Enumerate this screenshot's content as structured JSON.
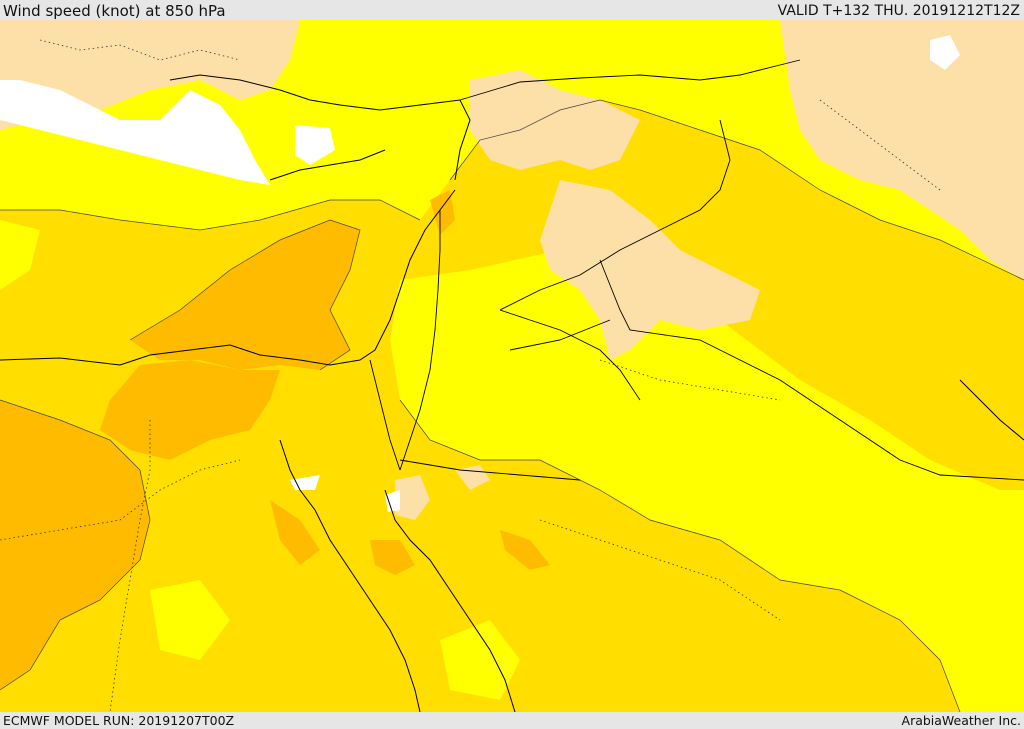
{
  "header": {
    "title": "Wind speed (knot) at 850 hPa",
    "valid": "VALID T+132 THU. 20191212T12Z"
  },
  "footer": {
    "model_run": "ECMWF MODEL RUN: 20191207T00Z",
    "credit": "ArabiaWeather Inc."
  },
  "map": {
    "colors": {
      "sea_white": "#ffffff",
      "calm_tan": "#fde0a8",
      "light_yellow": "#ffff00",
      "mid_yellow": "#ffde00",
      "orange": "#ffbb00",
      "dark_orange": "#fca800",
      "boundary": "#000000",
      "header_bg": "#e6e6e6"
    }
  }
}
